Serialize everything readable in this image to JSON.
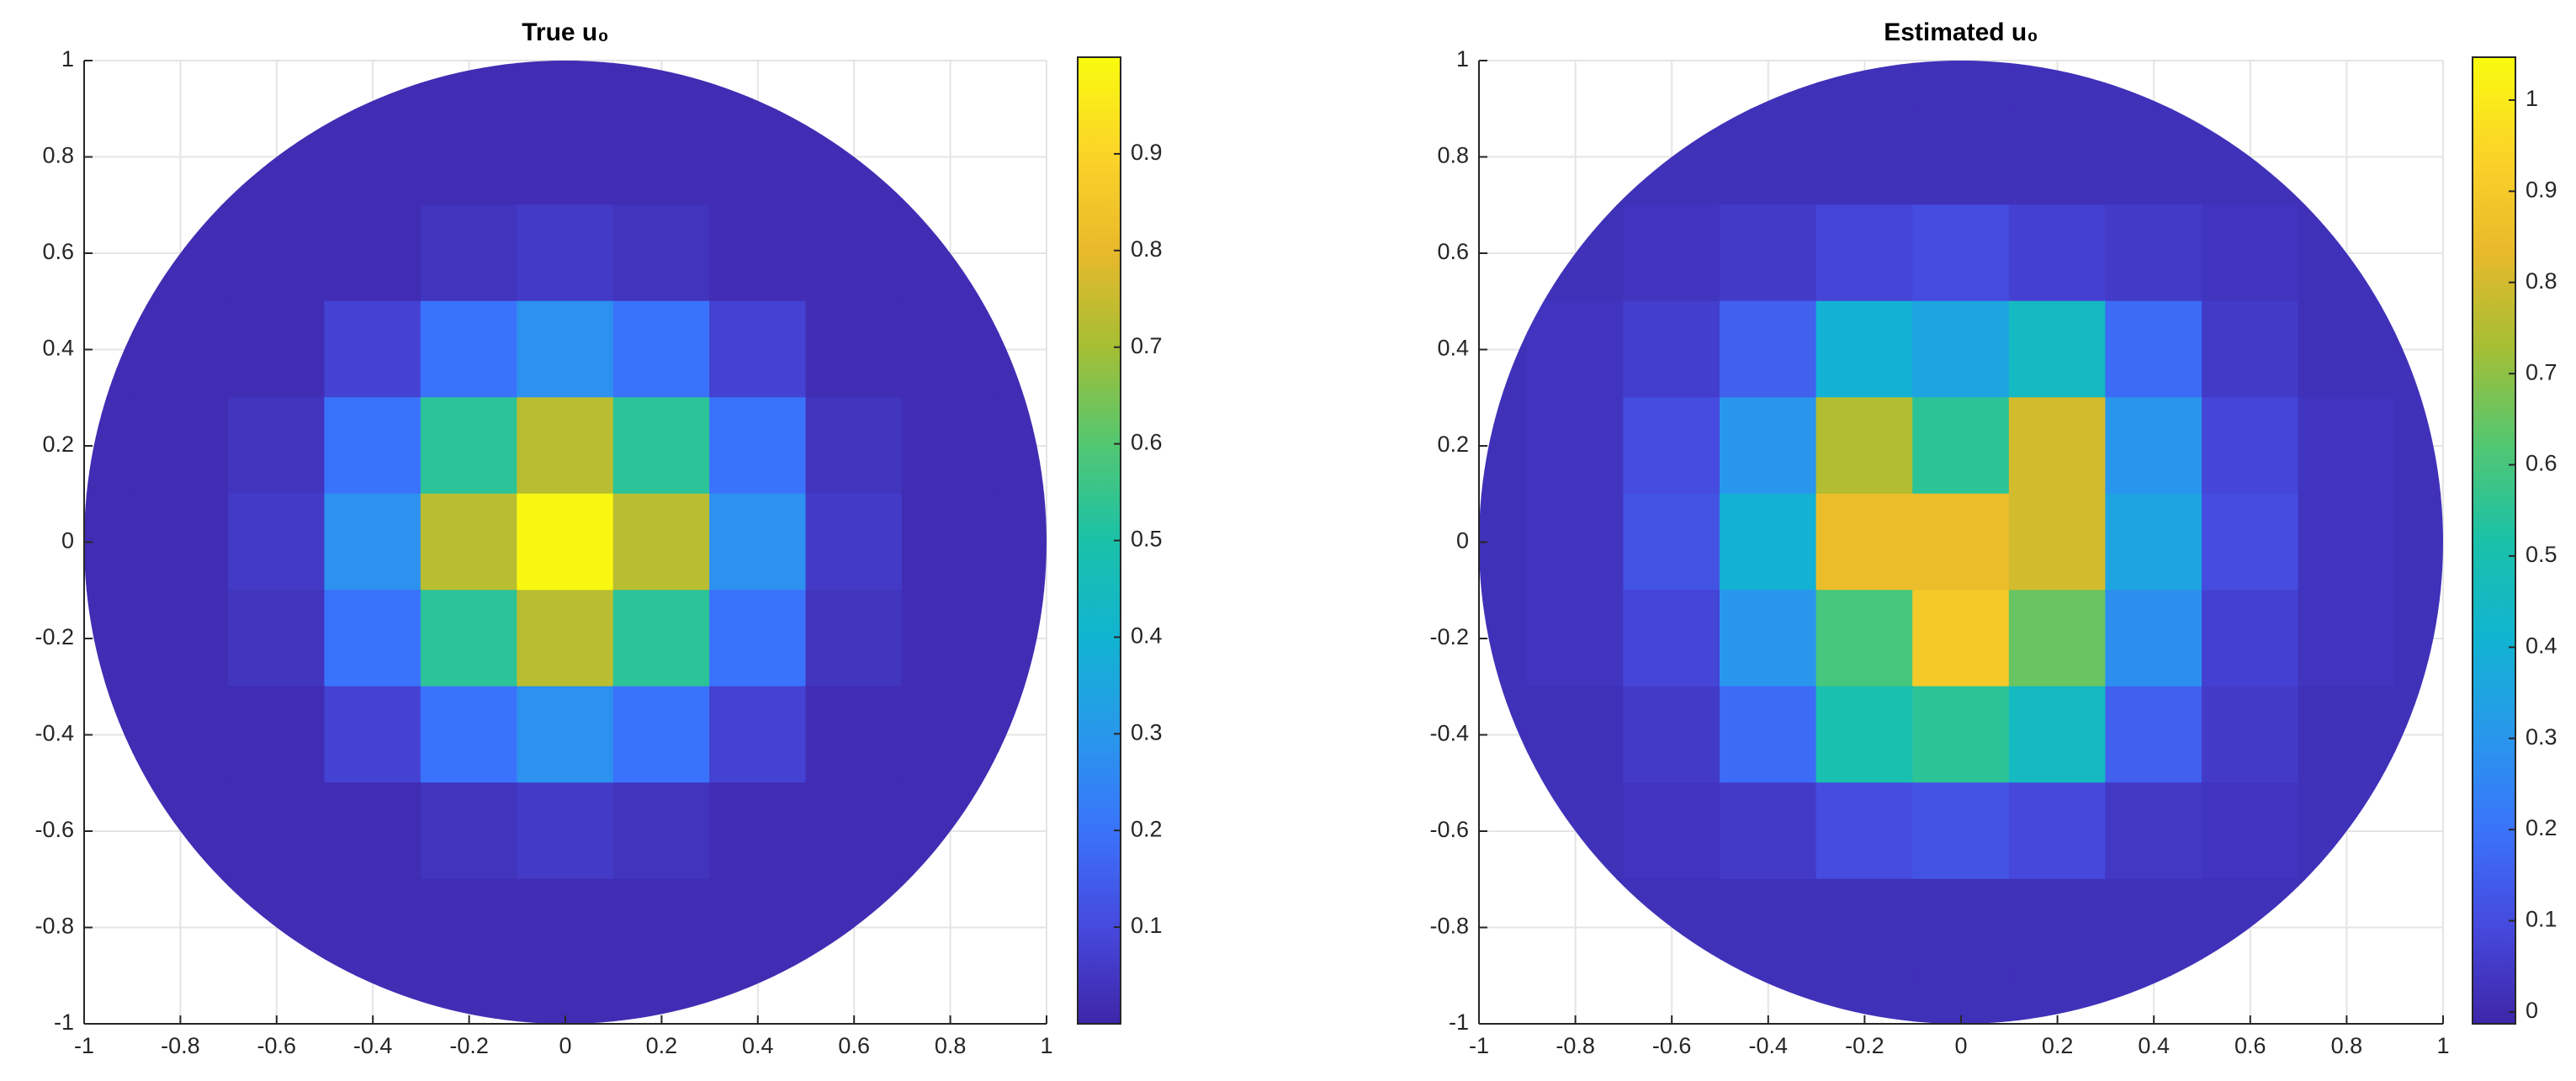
{
  "chart_data": [
    {
      "type": "heatmap",
      "title": "True u₀",
      "x": [
        -1,
        -0.8,
        -0.6,
        -0.4,
        -0.2,
        0,
        0.2,
        0.4,
        0.6,
        0.8,
        1
      ],
      "y": [
        1,
        0.8,
        0.6,
        0.4,
        0.2,
        0,
        -0.2,
        -0.4,
        -0.6,
        -0.8,
        -1
      ],
      "values": [
        [
          0.02,
          0.02,
          0.02,
          0.02,
          0.02,
          0.02,
          0.02,
          0.02,
          0.02,
          0.02,
          0.02
        ],
        [
          0.02,
          0.02,
          0.02,
          0.02,
          0.02,
          0.02,
          0.02,
          0.02,
          0.02,
          0.02,
          0.02
        ],
        [
          0.02,
          0.02,
          0.02,
          0.02,
          0.04,
          0.06,
          0.04,
          0.02,
          0.02,
          0.02,
          0.02
        ],
        [
          0.02,
          0.02,
          0.02,
          0.08,
          0.2,
          0.28,
          0.2,
          0.08,
          0.02,
          0.02,
          0.02
        ],
        [
          0.02,
          0.02,
          0.04,
          0.2,
          0.53,
          0.73,
          0.53,
          0.2,
          0.04,
          0.02,
          0.02
        ],
        [
          0.02,
          0.02,
          0.06,
          0.28,
          0.73,
          0.99,
          0.73,
          0.28,
          0.06,
          0.02,
          0.02
        ],
        [
          0.02,
          0.02,
          0.04,
          0.2,
          0.53,
          0.73,
          0.53,
          0.2,
          0.04,
          0.02,
          0.02
        ],
        [
          0.02,
          0.02,
          0.02,
          0.08,
          0.2,
          0.28,
          0.2,
          0.08,
          0.02,
          0.02,
          0.02
        ],
        [
          0.02,
          0.02,
          0.02,
          0.02,
          0.04,
          0.06,
          0.04,
          0.02,
          0.02,
          0.02,
          0.02
        ],
        [
          0.02,
          0.02,
          0.02,
          0.02,
          0.02,
          0.02,
          0.02,
          0.02,
          0.02,
          0.02,
          0.02
        ],
        [
          0.02,
          0.02,
          0.02,
          0.02,
          0.02,
          0.02,
          0.02,
          0.02,
          0.02,
          0.02,
          0.02
        ]
      ],
      "xlim": [
        -1,
        1
      ],
      "ylim": [
        -1,
        1
      ],
      "xticks": [
        -1,
        -0.8,
        -0.6,
        -0.4,
        -0.2,
        0,
        0.2,
        0.4,
        0.6,
        0.8,
        1
      ],
      "yticks": [
        -1,
        -0.8,
        -0.6,
        -0.4,
        -0.2,
        0,
        0.2,
        0.4,
        0.6,
        0.8,
        1
      ],
      "grid": true,
      "clim": [
        0,
        1
      ],
      "cticks": [
        0.1,
        0.2,
        0.3,
        0.4,
        0.5,
        0.6,
        0.7,
        0.8,
        0.9
      ],
      "colormap": [
        "#3e26a8",
        "#4649dd",
        "#3a73fb",
        "#2898ec",
        "#11b4d1",
        "#1ac1a8",
        "#53c771",
        "#a5be34",
        "#e9b92b",
        "#fbd428",
        "#f9fb0e"
      ]
    },
    {
      "type": "heatmap",
      "title": "Estimated u₀",
      "x": [
        -1,
        -0.8,
        -0.6,
        -0.4,
        -0.2,
        0,
        0.2,
        0.4,
        0.6,
        0.8,
        1
      ],
      "y": [
        1,
        0.8,
        0.6,
        0.4,
        0.2,
        0,
        -0.2,
        -0.4,
        -0.6,
        -0.8,
        -1
      ],
      "values": [
        [
          0.02,
          0.02,
          0.02,
          0.02,
          0.02,
          0.02,
          0.02,
          0.02,
          0.02,
          0.02,
          0.02
        ],
        [
          0.02,
          0.02,
          0.02,
          0.02,
          0.02,
          0.02,
          0.02,
          0.02,
          0.02,
          0.02,
          0.02
        ],
        [
          0.02,
          0.02,
          0.03,
          0.05,
          0.08,
          0.1,
          0.07,
          0.05,
          0.03,
          0.02,
          0.02
        ],
        [
          0.02,
          0.03,
          0.06,
          0.15,
          0.4,
          0.35,
          0.45,
          0.18,
          0.05,
          0.02,
          0.02
        ],
        [
          0.02,
          0.03,
          0.1,
          0.3,
          0.75,
          0.55,
          0.8,
          0.3,
          0.08,
          0.03,
          0.02
        ],
        [
          0.02,
          0.03,
          0.12,
          0.4,
          0.85,
          0.85,
          0.8,
          0.35,
          0.1,
          0.03,
          0.02
        ],
        [
          0.02,
          0.03,
          0.08,
          0.3,
          0.6,
          0.9,
          0.65,
          0.28,
          0.07,
          0.03,
          0.02
        ],
        [
          0.02,
          0.02,
          0.05,
          0.18,
          0.5,
          0.55,
          0.45,
          0.15,
          0.05,
          0.02,
          0.02
        ],
        [
          0.02,
          0.02,
          0.03,
          0.05,
          0.1,
          0.12,
          0.09,
          0.04,
          0.03,
          0.02,
          0.02
        ],
        [
          0.02,
          0.02,
          0.02,
          0.02,
          0.02,
          0.02,
          0.02,
          0.02,
          0.02,
          0.02,
          0.02
        ],
        [
          0.02,
          0.02,
          0.02,
          0.02,
          0.02,
          0.02,
          0.02,
          0.02,
          0.02,
          0.02,
          0.02
        ]
      ],
      "xlim": [
        -1,
        1
      ],
      "ylim": [
        -1,
        1
      ],
      "xticks": [
        -1,
        -0.8,
        -0.6,
        -0.4,
        -0.2,
        0,
        0.2,
        0.4,
        0.6,
        0.8,
        1
      ],
      "yticks": [
        -1,
        -0.8,
        -0.6,
        -0.4,
        -0.2,
        0,
        0.2,
        0.4,
        0.6,
        0.8,
        1
      ],
      "grid": true,
      "clim": [
        -0.013,
        1.047
      ],
      "cticks": [
        0,
        0.1,
        0.2,
        0.3,
        0.4,
        0.5,
        0.6,
        0.7,
        0.8,
        0.9,
        1
      ],
      "colormap": [
        "#3e26a8",
        "#4649dd",
        "#3a73fb",
        "#2898ec",
        "#11b4d1",
        "#1ac1a8",
        "#53c771",
        "#a5be34",
        "#e9b92b",
        "#fbd428",
        "#f9fb0e"
      ]
    }
  ]
}
